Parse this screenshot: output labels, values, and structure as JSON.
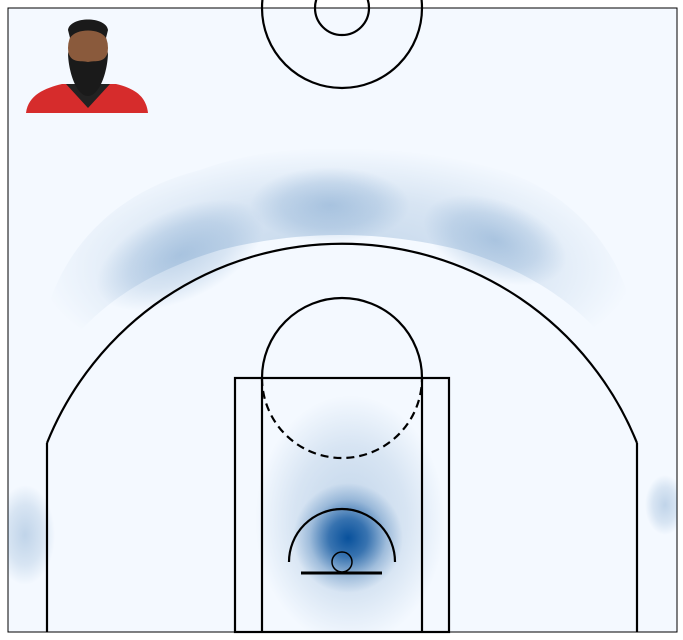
{
  "chart_data": {
    "type": "density",
    "color": "#08519c"
  }
}
